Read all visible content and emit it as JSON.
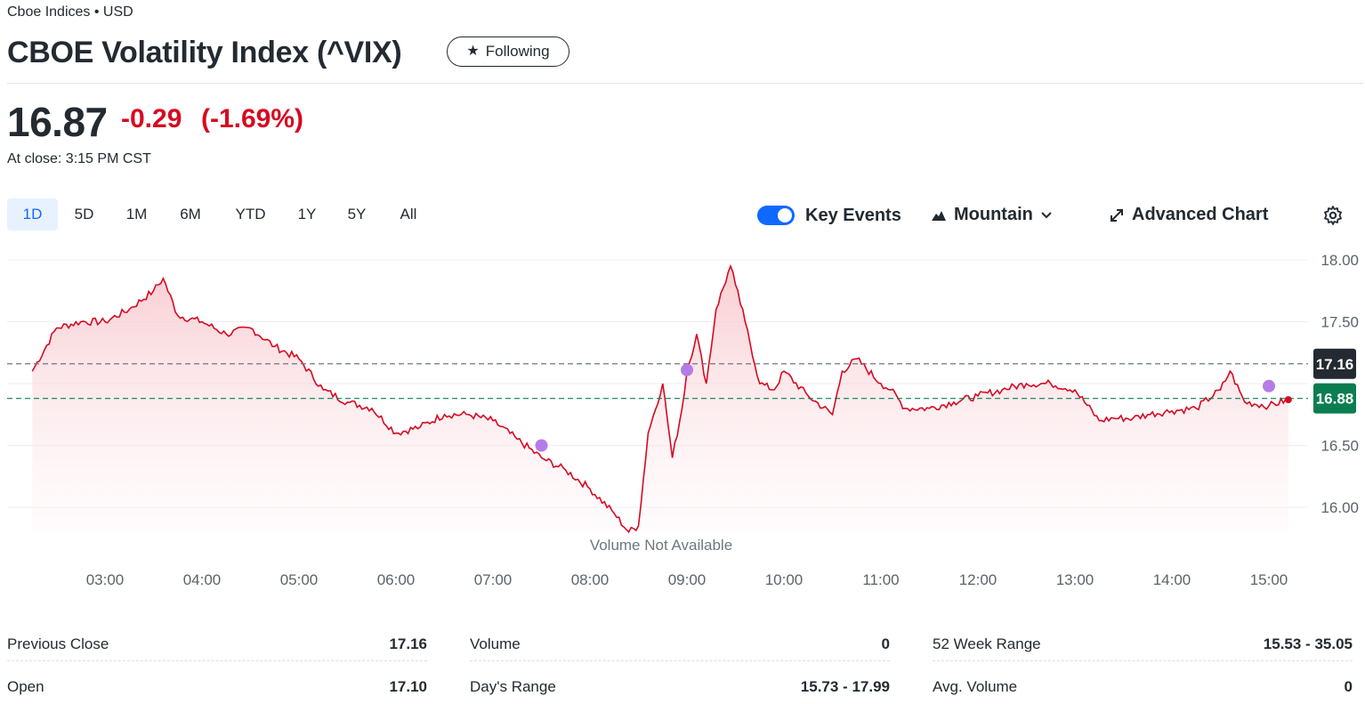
{
  "header": {
    "exchange": "Cboe Indices • USD",
    "title": "CBOE Volatility Index (^VIX)",
    "follow_label": "Following"
  },
  "quote": {
    "price": "16.87",
    "change": "-0.29",
    "change_pct": "(-1.69%)",
    "close_label": "At close: 3:15 PM CST"
  },
  "ranges": [
    {
      "label": "1D",
      "active": true
    },
    {
      "label": "5D"
    },
    {
      "label": "1M"
    },
    {
      "label": "6M"
    },
    {
      "label": "YTD"
    },
    {
      "label": "1Y"
    },
    {
      "label": "5Y"
    },
    {
      "label": "All"
    }
  ],
  "toolbar": {
    "key_events_label": "Key Events",
    "key_events_on": true,
    "chart_type_label": "Mountain",
    "advanced_label": "Advanced Chart"
  },
  "chart_data": {
    "type": "area",
    "x_tick_labels": [
      "03:00",
      "04:00",
      "05:00",
      "06:00",
      "07:00",
      "08:00",
      "09:00",
      "10:00",
      "11:00",
      "12:00",
      "13:00",
      "14:00",
      "15:00"
    ],
    "y_tick_labels": [
      "18.00",
      "17.50",
      "16.50",
      "16.00"
    ],
    "ylim": [
      15.8,
      18.1
    ],
    "previous_close": 17.16,
    "current_price": 16.88,
    "previous_close_label": "17.16",
    "current_label": "16.88",
    "x": [
      2.25,
      2.5,
      2.75,
      3.0,
      3.25,
      3.5,
      3.6,
      3.75,
      4.0,
      4.25,
      4.5,
      4.75,
      5.0,
      5.25,
      5.5,
      5.75,
      6.0,
      6.25,
      6.5,
      6.75,
      7.0,
      7.25,
      7.5,
      7.75,
      8.0,
      8.25,
      8.4,
      8.5,
      8.6,
      8.75,
      8.85,
      8.95,
      9.0,
      9.1,
      9.2,
      9.3,
      9.45,
      9.5,
      9.6,
      9.75,
      9.9,
      10.0,
      10.25,
      10.5,
      10.6,
      10.75,
      11.0,
      11.1,
      11.25,
      11.5,
      11.75,
      12.0,
      12.25,
      12.5,
      12.75,
      13.0,
      13.25,
      13.4,
      13.6,
      13.75,
      14.0,
      14.25,
      14.5,
      14.6,
      14.75,
      15.0,
      15.2
    ],
    "values": [
      17.1,
      17.45,
      17.5,
      17.5,
      17.6,
      17.75,
      17.85,
      17.55,
      17.5,
      17.4,
      17.45,
      17.3,
      17.2,
      16.95,
      16.85,
      16.8,
      16.6,
      16.65,
      16.75,
      16.75,
      16.7,
      16.55,
      16.4,
      16.3,
      16.15,
      15.95,
      15.8,
      15.85,
      16.6,
      17.0,
      16.4,
      16.8,
      17.1,
      17.4,
      17.0,
      17.6,
      17.95,
      17.8,
      17.5,
      17.0,
      16.95,
      17.1,
      16.9,
      16.75,
      17.1,
      17.2,
      17.0,
      16.95,
      16.8,
      16.8,
      16.85,
      16.9,
      16.95,
      17.0,
      17.0,
      16.95,
      16.7,
      16.72,
      16.72,
      16.75,
      16.78,
      16.8,
      16.95,
      17.1,
      16.85,
      16.82,
      16.87
    ],
    "key_events": [
      {
        "x": 7.5,
        "y": 16.5
      },
      {
        "x": 9.0,
        "y": 17.11
      },
      {
        "x": 15.0,
        "y": 16.98
      }
    ],
    "volume_text": "Volume Not Available",
    "line_color": "#d60a22",
    "fill_color": "#f8d2d6",
    "event_color": "#b57be6",
    "prev_close_color": "#232a31",
    "current_color": "#0c7d51"
  },
  "stats": [
    {
      "label": "Previous Close",
      "value": "17.16"
    },
    {
      "label": "Volume",
      "value": "0"
    },
    {
      "label": "52 Week Range",
      "value": "15.53 - 35.05"
    },
    {
      "label": "Open",
      "value": "17.10"
    },
    {
      "label": "Day's Range",
      "value": "15.73 - 17.99"
    },
    {
      "label": "Avg. Volume",
      "value": "0"
    }
  ]
}
